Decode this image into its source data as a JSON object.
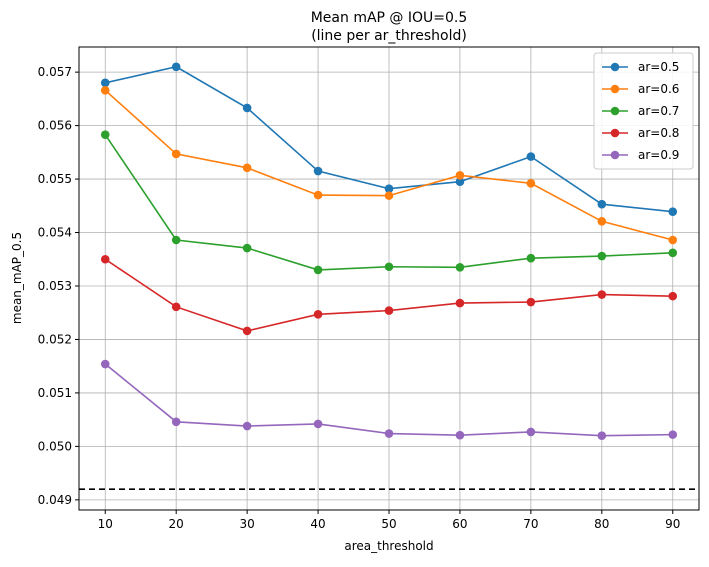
{
  "chart_data": {
    "type": "line",
    "title": "Mean mAP @ IOU=0.5",
    "subtitle": "(line per ar_threshold)",
    "xlabel": "area_threshold",
    "ylabel": "mean_mAP_0.5",
    "x": [
      10,
      20,
      30,
      40,
      50,
      60,
      70,
      80,
      90
    ],
    "x_ticks": [
      "10",
      "20",
      "30",
      "40",
      "50",
      "60",
      "70",
      "80",
      "90"
    ],
    "y_ticks": [
      "0.049",
      "0.050",
      "0.051",
      "0.052",
      "0.053",
      "0.054",
      "0.055",
      "0.056",
      "0.057"
    ],
    "y_tick_values": [
      0.049,
      0.05,
      0.051,
      0.052,
      0.053,
      0.054,
      0.055,
      0.056,
      0.057
    ],
    "xlim": [
      6.3,
      93.7
    ],
    "ylim": [
      0.04881,
      0.05747
    ],
    "grid": true,
    "legend_position": "top-right",
    "baseline": {
      "value": 0.0492,
      "style": "dashed",
      "color": "#000000"
    },
    "series": [
      {
        "name": "ar=0.5",
        "color": "#1f77b4",
        "values": [
          0.0568,
          0.0571,
          0.05633,
          0.05515,
          0.05482,
          0.05495,
          0.05542,
          0.05453,
          0.05439
        ]
      },
      {
        "name": "ar=0.6",
        "color": "#ff7f0e",
        "values": [
          0.05666,
          0.05547,
          0.05521,
          0.0547,
          0.05469,
          0.05507,
          0.05492,
          0.05421,
          0.05386
        ]
      },
      {
        "name": "ar=0.7",
        "color": "#2ca02c",
        "values": [
          0.05583,
          0.05386,
          0.05371,
          0.0533,
          0.05336,
          0.05335,
          0.05352,
          0.05356,
          0.05362
        ]
      },
      {
        "name": "ar=0.8",
        "color": "#d62728",
        "values": [
          0.0535,
          0.05261,
          0.05216,
          0.05247,
          0.05254,
          0.05268,
          0.0527,
          0.05284,
          0.05281
        ]
      },
      {
        "name": "ar=0.9",
        "color": "#9467bd",
        "values": [
          0.05154,
          0.05046,
          0.05038,
          0.05042,
          0.05024,
          0.05021,
          0.05027,
          0.0502,
          0.05022
        ]
      }
    ]
  }
}
